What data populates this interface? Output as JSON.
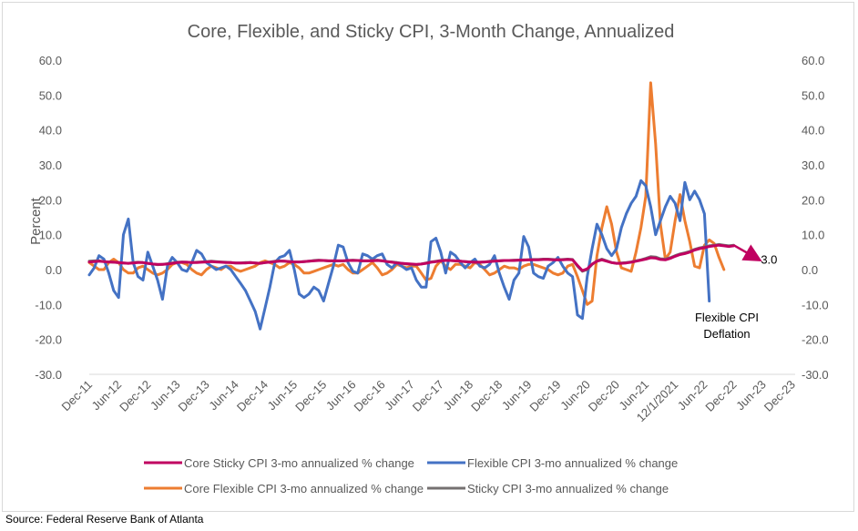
{
  "source": "Source: Federal Reserve Bank of Atlanta",
  "chart_data": {
    "type": "line",
    "title": "Core, Flexible, and Sticky CPI, 3-Month Change, Annualized",
    "ylabel": "Percent",
    "ylim": [
      -30,
      60
    ],
    "yticks": [
      "60.0",
      "50.0",
      "40.0",
      "30.0",
      "20.0",
      "10.0",
      "0.0",
      "-10.0",
      "-20.0",
      "-30.0"
    ],
    "ytick_values": [
      60,
      50,
      40,
      30,
      20,
      10,
      0,
      -10,
      -20,
      -30
    ],
    "xticks": [
      "Dec-11",
      "Jun-12",
      "Dec-12",
      "Jun-13",
      "Dec-13",
      "Jun-14",
      "Dec-14",
      "Jun-15",
      "Dec-15",
      "Jun-16",
      "Dec-16",
      "Jun-17",
      "Dec-17",
      "Jun-18",
      "Dec-18",
      "Jun-19",
      "Dec-19",
      "Jun-20",
      "Dec-20",
      "Jun-21",
      "12/1/2021",
      "Jun-22",
      "Dec-22",
      "Jun-23",
      "Dec-23"
    ],
    "xtick_months": [
      0,
      6,
      12,
      18,
      24,
      30,
      36,
      42,
      48,
      54,
      60,
      66,
      72,
      78,
      84,
      90,
      96,
      102,
      108,
      114,
      120,
      126,
      132,
      138,
      144
    ],
    "grid": false,
    "legend": "bottom",
    "series": [
      {
        "name": "Flexible CPI 3-mo annualized % change",
        "color": "#4472c4",
        "values": [
          -1.5,
          0.5,
          4,
          3,
          -1,
          -6,
          -8,
          10,
          14.5,
          2,
          -2,
          -3,
          5,
          1,
          -3,
          -8.5,
          1,
          3.5,
          2,
          0,
          -0.5,
          2,
          5.5,
          4.5,
          2,
          1,
          0,
          0.5,
          1,
          0,
          -2,
          -4,
          -6,
          -9,
          -12,
          -17,
          -11,
          -5,
          2,
          3.5,
          4,
          5.5,
          0,
          -7,
          -8,
          -7,
          -5,
          -6,
          -9,
          -4,
          1,
          7,
          6.5,
          2,
          -0.5,
          -1,
          4.5,
          4,
          3,
          4,
          4.5,
          1.5,
          0.5,
          2,
          1,
          0,
          0.5,
          -3,
          -5,
          -5,
          8,
          9,
          5,
          -1,
          5,
          4,
          2,
          0.5,
          2,
          3,
          1,
          0.5,
          1.5,
          4,
          -1,
          -5,
          -8.5,
          -3,
          -1,
          9.5,
          6.5,
          -1,
          -2,
          -2.5,
          1,
          2,
          3.5,
          1,
          -1,
          -2,
          -13,
          -14,
          -2,
          6,
          13,
          10,
          6,
          4,
          6,
          12,
          16,
          19,
          21,
          25.5,
          24,
          18,
          10,
          14,
          18,
          21,
          19,
          14,
          25,
          20,
          22.5,
          20,
          16,
          -9
        ],
        "end_label": "Flexible CPI Deflation"
      },
      {
        "name": "Core Flexible CPI 3-mo annualized % change",
        "color": "#ed7d31",
        "values": [
          2,
          1,
          0,
          0,
          2,
          3,
          2,
          0,
          -1,
          -1,
          0.5,
          1,
          0,
          -1,
          -1.5,
          -1,
          0,
          1.5,
          2,
          2,
          1.5,
          0,
          -1,
          -1.5,
          0,
          1,
          0.5,
          0,
          1,
          1,
          0,
          -0.5,
          0,
          0.5,
          1,
          2,
          2.5,
          2,
          1.5,
          0.5,
          1,
          2,
          1.5,
          0.5,
          -1,
          -1,
          -0.5,
          0,
          0.5,
          1,
          1.5,
          1,
          1.5,
          0,
          -1,
          -1,
          0,
          1,
          2,
          0.5,
          -1.5,
          -1,
          0,
          1.5,
          1,
          0.5,
          1,
          1,
          -1,
          -3,
          -2.5,
          1,
          2.5,
          1,
          0,
          1.5,
          1.5,
          1,
          0.5,
          2,
          1.5,
          0,
          -1.5,
          -1,
          0,
          1,
          0.5,
          0.5,
          0,
          1,
          1.5,
          1.5,
          1,
          0.5,
          0,
          -1,
          -1.5,
          -1,
          1,
          1.5,
          -2,
          -6,
          -10,
          -9,
          4,
          12,
          18,
          13,
          5,
          0.5,
          0,
          -0.5,
          5,
          12,
          21,
          53.5,
          36,
          13,
          3,
          5,
          14,
          21.5,
          14,
          8,
          1,
          0.5,
          7,
          8.5,
          7.5,
          3.5,
          0
        ]
      },
      {
        "name": "Sticky CPI 3-mo annualized % change",
        "color": "#757171",
        "values": [
          2.4,
          2.5,
          2.5,
          2.3,
          2.2,
          2.1,
          2.0,
          1.9,
          1.8,
          2.0,
          2.1,
          2.0,
          1.8,
          1.6,
          1.4,
          1.5,
          1.7,
          1.9,
          2.1,
          2.2,
          2.1,
          2.0,
          2.1,
          2.2,
          2.3,
          2.4,
          2.3,
          2.2,
          2.1,
          2.0,
          1.9,
          1.9,
          2.0,
          2.0,
          1.9,
          1.8,
          2.0,
          2.2,
          2.4,
          2.5,
          2.4,
          2.3,
          2.2,
          2.2,
          2.3,
          2.4,
          2.6,
          2.7,
          2.6,
          2.5,
          2.5,
          2.5,
          2.5,
          2.6,
          2.7,
          2.6,
          2.5,
          2.5,
          2.6,
          2.7,
          2.5,
          2.3,
          2.2,
          2.0,
          1.8,
          1.6,
          1.5,
          1.4,
          1.6,
          1.9,
          2.2,
          2.4,
          2.6,
          2.7,
          2.6,
          2.5,
          2.4,
          2.3,
          2.2,
          2.1,
          2.1,
          2.2,
          2.4,
          2.5,
          2.5,
          2.6,
          2.6,
          2.7,
          2.7,
          2.8,
          2.8,
          2.9,
          2.9,
          3.0,
          3.0,
          2.9,
          2.8,
          2.9,
          3.0,
          2.9,
          1.0,
          -0.5,
          0.0,
          1.5,
          2.5,
          3.0,
          2.5,
          2.0,
          1.8,
          1.9,
          2.0,
          2.2,
          2.5,
          2.8,
          3.2,
          3.7,
          3.6,
          3.1,
          3.0,
          3.4,
          4.0,
          4.5,
          4.8,
          5.2,
          5.8,
          6.2,
          6.5,
          6.8,
          7.0,
          7.2,
          7.0,
          6.8,
          7.0
        ]
      },
      {
        "name": "Core Sticky CPI 3-mo annualized % change",
        "color": "#c00060",
        "values": [
          2.2,
          2.3,
          2.4,
          2.3,
          2.2,
          2.1,
          2.0,
          1.9,
          1.8,
          1.9,
          2.0,
          2.0,
          1.8,
          1.6,
          1.5,
          1.5,
          1.6,
          1.8,
          2.0,
          2.1,
          2.1,
          2.0,
          2.0,
          2.1,
          2.2,
          2.3,
          2.2,
          2.1,
          2.0,
          2.0,
          1.9,
          1.9,
          1.9,
          2.0,
          1.9,
          1.8,
          2.0,
          2.1,
          2.3,
          2.4,
          2.4,
          2.3,
          2.2,
          2.2,
          2.3,
          2.4,
          2.5,
          2.6,
          2.6,
          2.5,
          2.5,
          2.5,
          2.5,
          2.6,
          2.6,
          2.6,
          2.5,
          2.5,
          2.5,
          2.6,
          2.5,
          2.3,
          2.1,
          1.9,
          1.8,
          1.7,
          1.6,
          1.5,
          1.6,
          1.8,
          2.1,
          2.3,
          2.5,
          2.6,
          2.6,
          2.5,
          2.4,
          2.3,
          2.2,
          2.1,
          2.1,
          2.2,
          2.3,
          2.4,
          2.5,
          2.6,
          2.6,
          2.6,
          2.7,
          2.7,
          2.8,
          2.8,
          2.8,
          2.9,
          2.9,
          2.8,
          2.8,
          2.8,
          2.9,
          2.8,
          1.2,
          -0.3,
          0.2,
          1.6,
          2.4,
          2.8,
          2.4,
          2.0,
          1.8,
          1.8,
          1.9,
          2.1,
          2.4,
          2.7,
          3.0,
          3.4,
          3.3,
          2.9,
          2.8,
          3.2,
          3.8,
          4.3,
          4.6,
          5.0,
          5.6,
          6.0,
          6.3,
          6.6,
          6.8,
          7.0,
          6.8,
          6.6,
          6.8
        ]
      }
    ],
    "projection": {
      "from_month": 132,
      "from_value": 7.0,
      "to_month": 137,
      "to_value": 3.0,
      "label": "3.0",
      "color": "#c00060"
    },
    "legend_entries": [
      {
        "label": "Core Sticky CPI 3-mo annualized % change",
        "color": "#c00060"
      },
      {
        "label": "Flexible CPI 3-mo annualized % change",
        "color": "#4472c4"
      },
      {
        "label": "Core Flexible CPI 3-mo annualized % change",
        "color": "#ed7d31"
      },
      {
        "label": "Sticky CPI 3-mo annualized % change",
        "color": "#757171"
      }
    ]
  }
}
